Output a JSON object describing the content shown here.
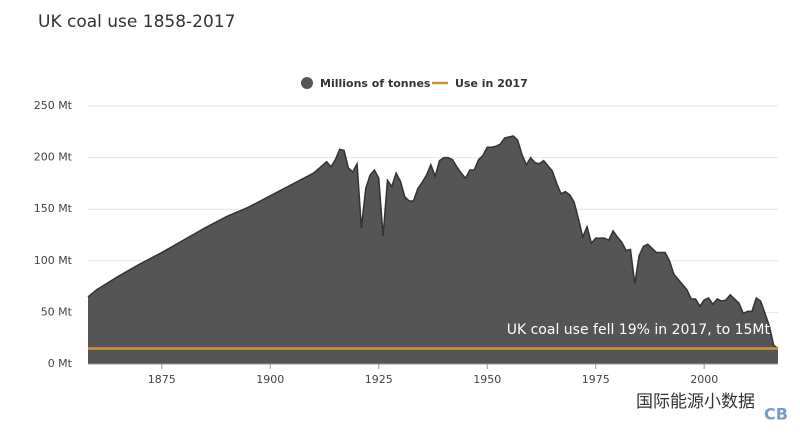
{
  "chart_data": {
    "type": "area",
    "title": "UK coal use 1858-2017",
    "x": [
      1858,
      1860,
      1865,
      1870,
      1875,
      1880,
      1885,
      1890,
      1895,
      1900,
      1905,
      1910,
      1913,
      1914,
      1915,
      1916,
      1917,
      1918,
      1919,
      1920,
      1921,
      1922,
      1923,
      1924,
      1925,
      1926,
      1927,
      1928,
      1929,
      1930,
      1931,
      1932,
      1933,
      1934,
      1935,
      1936,
      1937,
      1938,
      1939,
      1940,
      1941,
      1942,
      1943,
      1944,
      1945,
      1946,
      1947,
      1948,
      1949,
      1950,
      1951,
      1952,
      1953,
      1954,
      1955,
      1956,
      1957,
      1958,
      1959,
      1960,
      1961,
      1962,
      1963,
      1964,
      1965,
      1966,
      1967,
      1968,
      1969,
      1970,
      1971,
      1972,
      1973,
      1974,
      1975,
      1976,
      1977,
      1978,
      1979,
      1980,
      1981,
      1982,
      1983,
      1984,
      1985,
      1986,
      1987,
      1988,
      1989,
      1990,
      1991,
      1992,
      1993,
      1994,
      1995,
      1996,
      1997,
      1998,
      1999,
      2000,
      2001,
      2002,
      2003,
      2004,
      2005,
      2006,
      2007,
      2008,
      2009,
      2010,
      2011,
      2012,
      2013,
      2014,
      2015,
      2016,
      2017
    ],
    "series": [
      {
        "name": "Millions of tonnes",
        "color": "#555555",
        "values": [
          65,
          72,
          85,
          97,
          108,
          120,
          132,
          143,
          152,
          163,
          174,
          185,
          196,
          191,
          198,
          208,
          207,
          190,
          186,
          194,
          132,
          170,
          183,
          188,
          180,
          124,
          178,
          172,
          185,
          177,
          162,
          158,
          158,
          170,
          176,
          183,
          193,
          182,
          197,
          200,
          200,
          198,
          191,
          185,
          180,
          188,
          188,
          198,
          202,
          210,
          210,
          211,
          213,
          219,
          220,
          221,
          217,
          203,
          193,
          200,
          195,
          194,
          197,
          192,
          187,
          175,
          165,
          167,
          164,
          157,
          141,
          123,
          133,
          117,
          122,
          122,
          122,
          120,
          129,
          123,
          118,
          110,
          111,
          78,
          105,
          114,
          116,
          112,
          108,
          108,
          108,
          100,
          87,
          82,
          77,
          72,
          63,
          63,
          56,
          62,
          64,
          58,
          63,
          61,
          62,
          67,
          63,
          59,
          49,
          51,
          51,
          64,
          61,
          49,
          37,
          18,
          15
        ]
      }
    ],
    "reference": {
      "name": "Use in 2017",
      "value": 15,
      "color": "#d4923c"
    },
    "annotation": "UK coal use fell 19% in 2017, to 15Mt",
    "xlim": [
      1858,
      2017
    ],
    "ylim": [
      0,
      250
    ],
    "xticks": [
      1875,
      1900,
      1925,
      1950,
      1975,
      2000
    ],
    "yticks": [
      {
        "value": 0,
        "label": "0 Mt"
      },
      {
        "value": 50,
        "label": "50 Mt"
      },
      {
        "value": 100,
        "label": "100 Mt"
      },
      {
        "value": 150,
        "label": "150 Mt"
      },
      {
        "value": 200,
        "label": "200 Mt"
      },
      {
        "value": 250,
        "label": "250 Mt"
      }
    ],
    "grid": true,
    "watermark": "国际能源小数据",
    "logo": "CB"
  }
}
